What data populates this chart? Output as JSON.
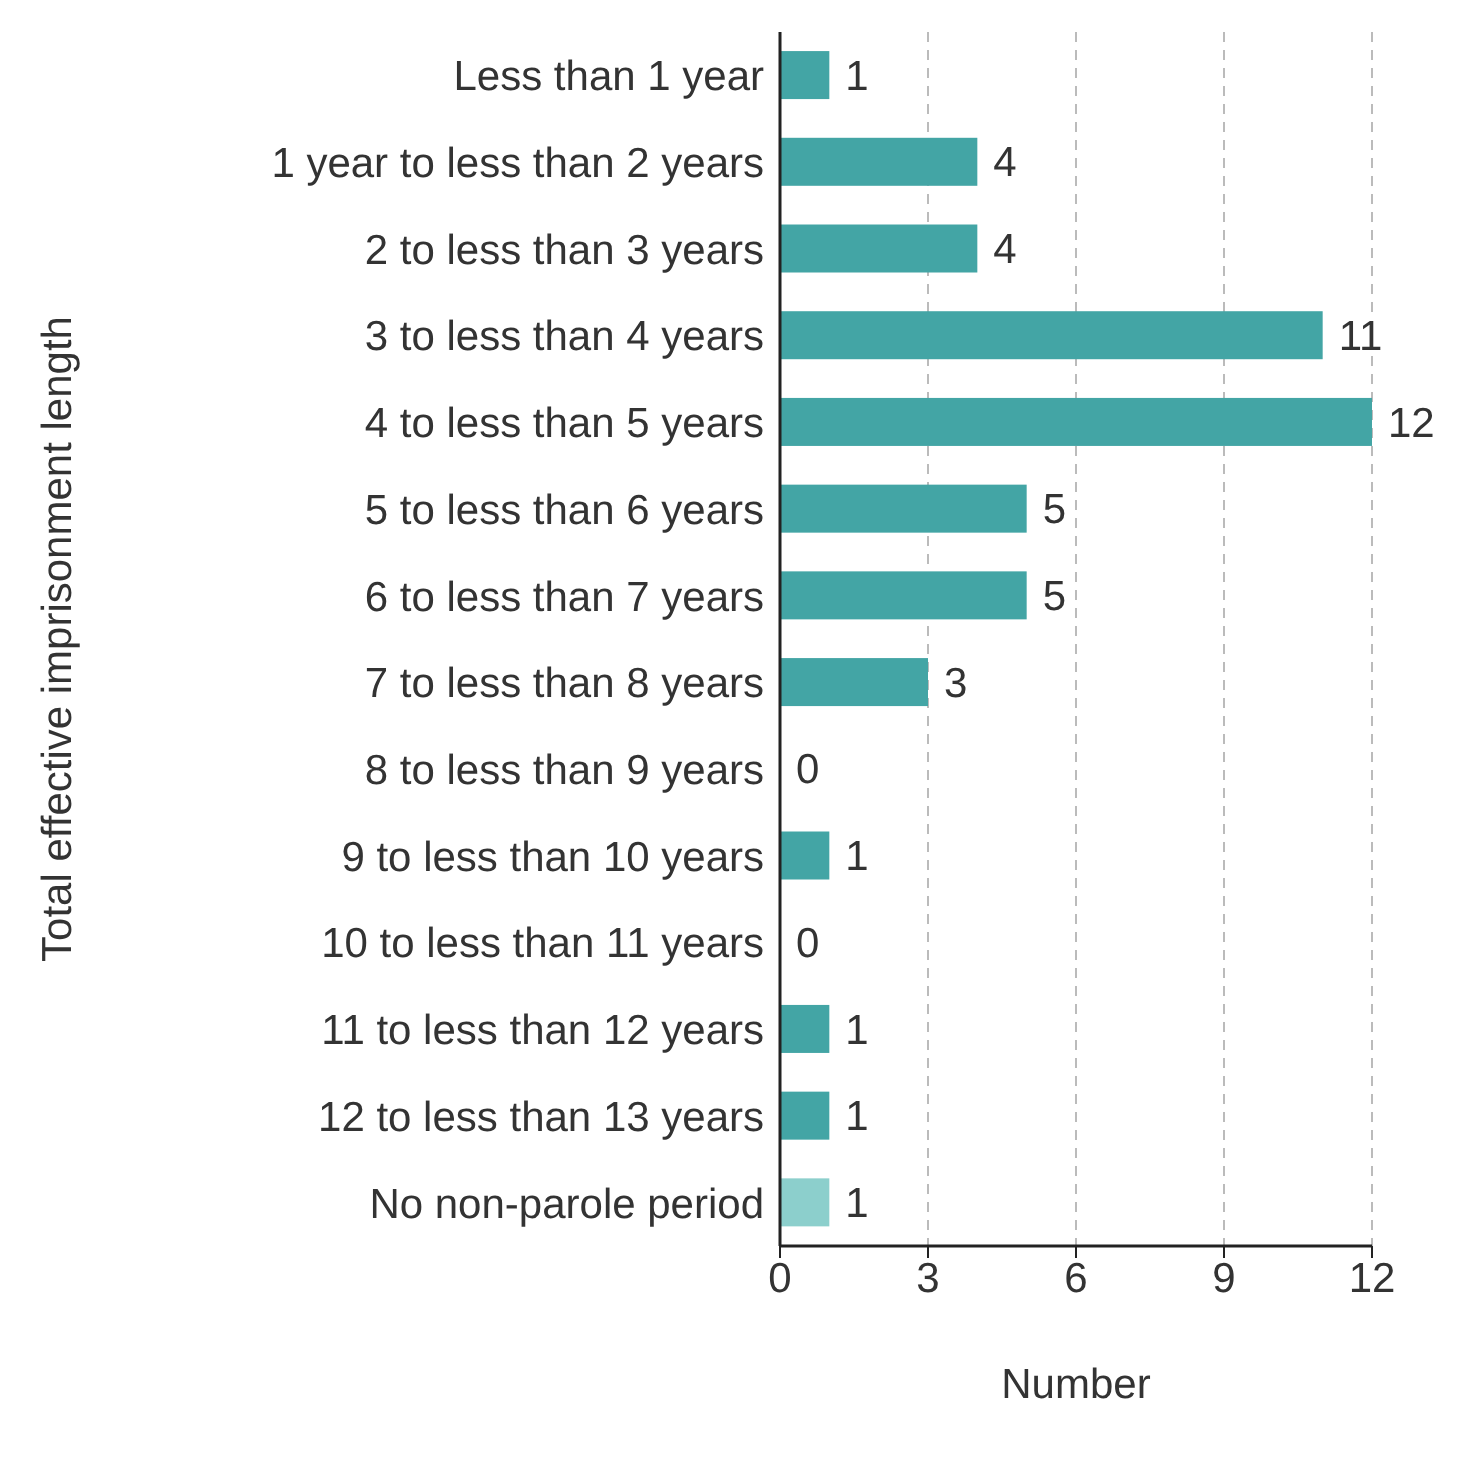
{
  "chart_data": {
    "type": "bar",
    "orientation": "horizontal",
    "xlabel": "Number",
    "ylabel": "Total effective imprisonment length",
    "categories": [
      "Less than 1 year",
      "1 year to less than 2 years",
      "2 to less than 3 years",
      "3 to less than 4 years",
      "4 to less than 5 years",
      "5 to less than 6 years",
      "6 to less than 7 years",
      "7 to less than 8 years",
      "8 to less than 9 years",
      "9 to less than 10 years",
      "10 to less than 11 years",
      "11 to less than 12 years",
      "12 to less than 13 years",
      "No non-parole period"
    ],
    "values": [
      1,
      4,
      4,
      11,
      12,
      5,
      5,
      3,
      0,
      1,
      0,
      1,
      1,
      1
    ],
    "colors": [
      "#43a5a5",
      "#43a5a5",
      "#43a5a5",
      "#43a5a5",
      "#43a5a5",
      "#43a5a5",
      "#43a5a5",
      "#43a5a5",
      "#43a5a5",
      "#43a5a5",
      "#43a5a5",
      "#43a5a5",
      "#43a5a5",
      "#8ccfcc"
    ],
    "xlim": [
      0,
      12
    ],
    "xticks": [
      0,
      3,
      6,
      9,
      12
    ],
    "grid": "x",
    "data_labels": true
  }
}
